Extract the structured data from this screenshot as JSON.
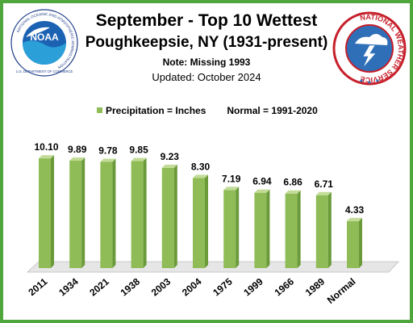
{
  "header": {
    "title": "September - Top 10 Wettest",
    "subtitle": "Poughkeepsie,  NY (1931-present)",
    "note": "Note:  Missing 1993",
    "updated": "Updated:  October 2024"
  },
  "logos": {
    "left": {
      "name": "NOAA",
      "ring_text": "NATIONAL OCEANIC AND ATMOSPHERIC ADMINISTRATION",
      "bottom_text": "U.S. DEPARTMENT OF COMMERCE",
      "icon": "noaa-logo"
    },
    "right": {
      "ring_text": "NATIONAL WEATHER SERVICE",
      "icon": "nws-logo"
    }
  },
  "colors": {
    "bar": "#8fbc56",
    "bar_side": "#6a9a3a",
    "bar_top": "#c2dc97",
    "border": "#4ea63d",
    "floor": "#e6e6e6"
  },
  "chart_data": {
    "type": "bar",
    "title": "September - Top 10 Wettest",
    "categories": [
      "2011",
      "1934",
      "2021",
      "1938",
      "2003",
      "2004",
      "1975",
      "1999",
      "1966",
      "1989",
      "Normal"
    ],
    "values": [
      10.1,
      9.89,
      9.78,
      9.85,
      9.23,
      8.3,
      7.19,
      6.94,
      6.86,
      6.71,
      4.33
    ],
    "value_labels": [
      "10.10",
      "9.89",
      "9.78",
      "9.85",
      "9.23",
      "8.30",
      "7.19",
      "6.94",
      "6.86",
      "6.71",
      "4.33"
    ],
    "legend": [
      "Precipitation = Inches",
      "Normal = 1991-2020"
    ],
    "legend_position": "top",
    "grid": false
  }
}
